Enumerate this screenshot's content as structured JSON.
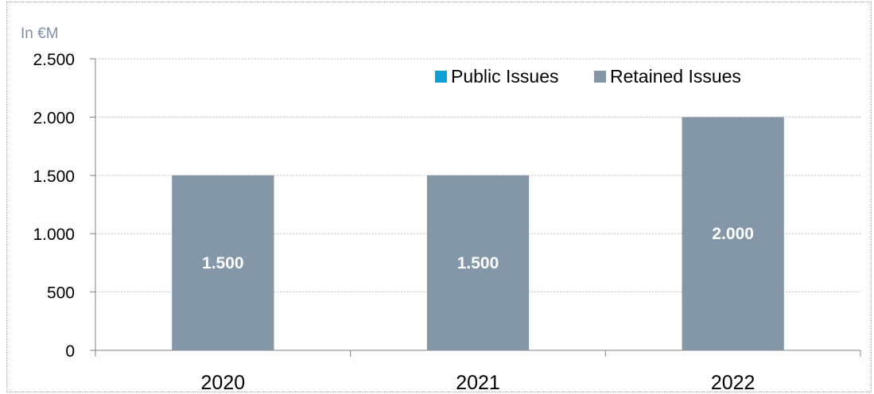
{
  "chart_data": {
    "type": "bar",
    "unit_label": "In €M",
    "categories": [
      "2020",
      "2021",
      "2022"
    ],
    "series": [
      {
        "name": "Public Issues",
        "color": "#0f9ed5",
        "values": [
          0,
          0,
          0
        ]
      },
      {
        "name": "Retained Issues",
        "color": "#8497a9",
        "values": [
          1500,
          1500,
          2000
        ]
      }
    ],
    "data_labels": [
      "1.500",
      "1.500",
      "2.000"
    ],
    "y_ticks": [
      {
        "value": 0,
        "label": "0"
      },
      {
        "value": 500,
        "label": "500"
      },
      {
        "value": 1000,
        "label": "1.000"
      },
      {
        "value": 1500,
        "label": "1.500"
      },
      {
        "value": 2000,
        "label": "2.000"
      },
      {
        "value": 2500,
        "label": "2.500"
      }
    ],
    "ylim": [
      0,
      2500
    ],
    "grid": true,
    "legend_position": "top-right",
    "title": "",
    "xlabel": "",
    "ylabel": ""
  }
}
